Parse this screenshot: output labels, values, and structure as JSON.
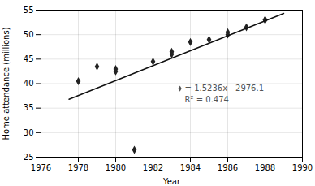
{
  "chart_data": {
    "type": "scatter",
    "xlabel": "Year",
    "ylabel": "Home attendance (millions)",
    "series": [
      {
        "type": "scatter",
        "color": "#222222",
        "marker": "diamond",
        "x": [
          1978,
          1979,
          1980,
          1980,
          1981,
          1982,
          1983,
          1983,
          1984,
          1985,
          1986,
          1986,
          1987,
          1988,
          1988
        ],
        "values": [
          40.5,
          43.5,
          43.0,
          42.5,
          26.5,
          44.5,
          46.5,
          46.0,
          48.5,
          49.0,
          50.0,
          50.5,
          51.5,
          53.0,
          53.0
        ]
      },
      {
        "type": "line",
        "color": "#111111",
        "line_style": "solid",
        "x": [
          1977.5,
          1989.0
        ],
        "values": [
          36.819,
          54.3404
        ]
      }
    ],
    "annotations": [
      {
        "text": "= 1.5236x - 2976.1",
        "x": 1983.7,
        "y": 39.0,
        "color": "#555555",
        "marker": "diamond"
      },
      {
        "text": "R² = 0.474",
        "x": 1983.7,
        "y": 36.7,
        "color": "#555555"
      }
    ],
    "xlim": [
      1976,
      1990
    ],
    "ylim": [
      25,
      55
    ],
    "xticks": [
      1976,
      1978,
      1980,
      1982,
      1984,
      1986,
      1988,
      1990
    ],
    "yticks": [
      25,
      30,
      35,
      40,
      45,
      50,
      55
    ],
    "grid": true
  }
}
